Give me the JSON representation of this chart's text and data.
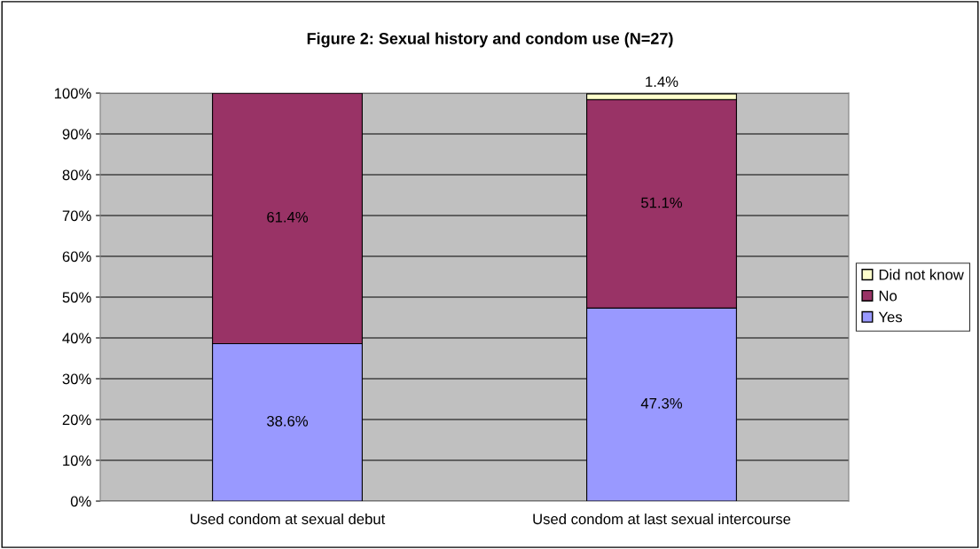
{
  "chart_data": {
    "type": "bar",
    "title": "Figure 2: Sexual history and condom use (N=27)",
    "stacked": true,
    "categories": [
      "Used condom at sexual debut",
      "Used condom at last sexual intercourse"
    ],
    "series": [
      {
        "name": "Yes",
        "color": "#9999ff",
        "values": [
          38.6,
          47.3
        ],
        "value_labels": [
          "38.6%",
          "47.3%"
        ]
      },
      {
        "name": "No",
        "color": "#993366",
        "values": [
          61.4,
          51.1
        ],
        "value_labels": [
          "61.4%",
          "51.1%"
        ]
      },
      {
        "name": "Did not know",
        "color": "#ffffcc",
        "values": [
          null,
          1.4
        ],
        "value_labels": [
          null,
          "1.4%"
        ]
      }
    ],
    "ylim": [
      0,
      100
    ],
    "yticks": [
      {
        "value": 0,
        "label": "0%"
      },
      {
        "value": 10,
        "label": "10%"
      },
      {
        "value": 20,
        "label": "20%"
      },
      {
        "value": 30,
        "label": "30%"
      },
      {
        "value": 40,
        "label": "40%"
      },
      {
        "value": 50,
        "label": "50%"
      },
      {
        "value": 60,
        "label": "60%"
      },
      {
        "value": 70,
        "label": "70%"
      },
      {
        "value": 80,
        "label": "80%"
      },
      {
        "value": 90,
        "label": "90%"
      },
      {
        "value": 100,
        "label": "100%"
      }
    ],
    "grid": "y",
    "legend": "right"
  }
}
